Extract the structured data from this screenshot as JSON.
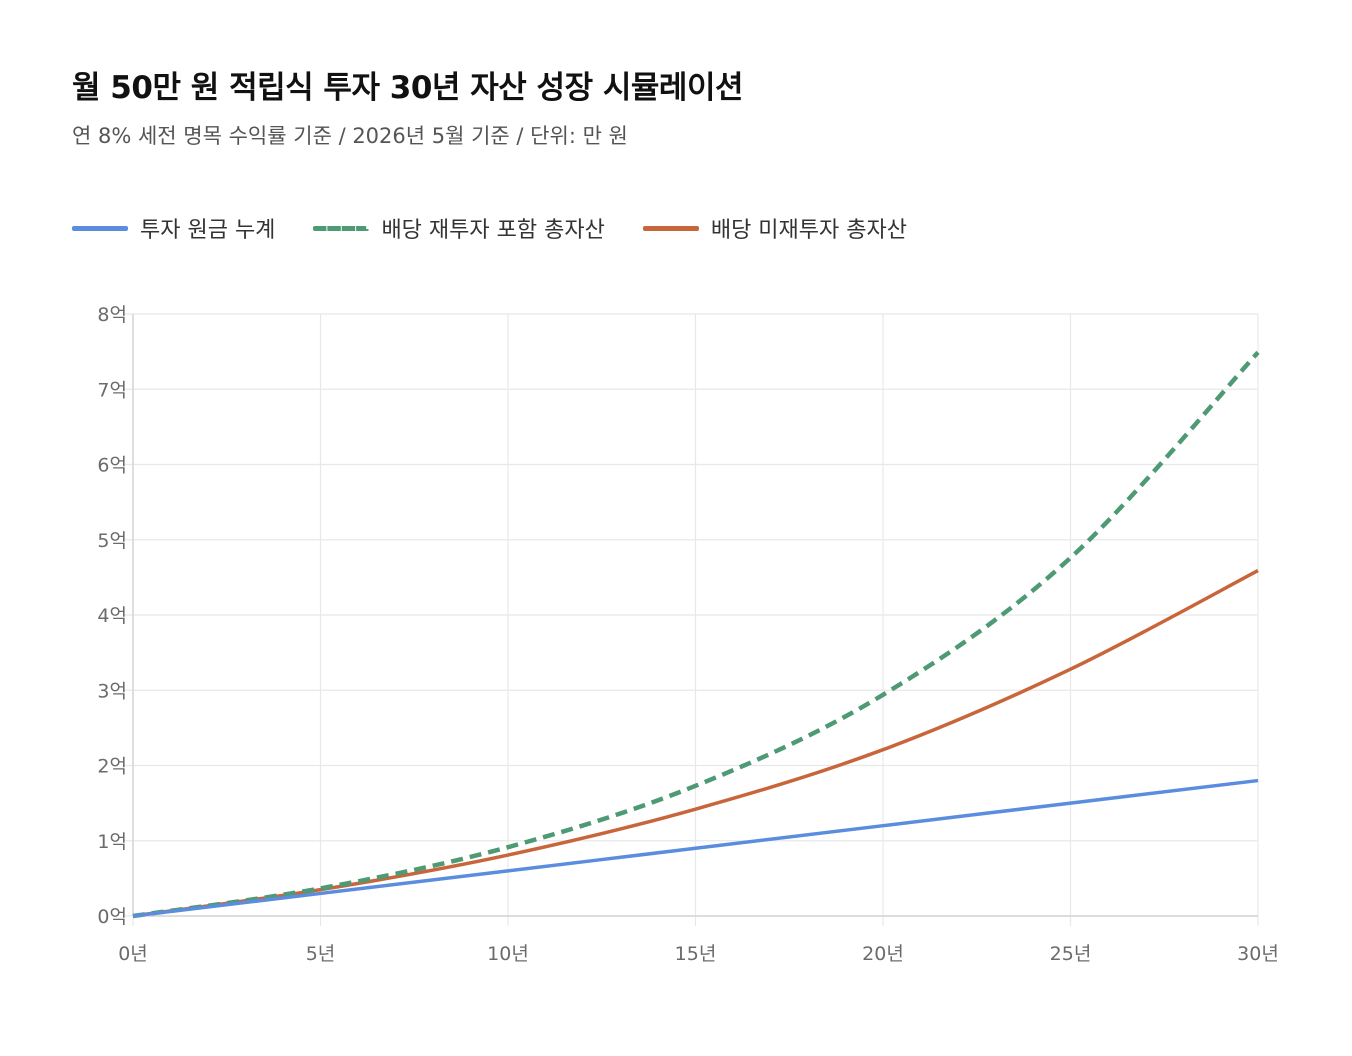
{
  "header": {
    "title": "월 50만 원 적립식 투자 30년 자산 성장 시뮬레이션",
    "subtitle": "연 8% 세전 명목 수익률 기준 / 2026년 5월 기준 / 단위: 만 원"
  },
  "chart_data": {
    "type": "line",
    "title": "월 50만 원 적립식 투자 30년 자산 성장 시뮬레이션",
    "subtitle": "연 8% 세전 명목 수익률 기준 / 2026년 5월 기준 / 단위: 만 원",
    "xlabel": "",
    "ylabel": "",
    "x": [
      0,
      5,
      10,
      15,
      20,
      25,
      30
    ],
    "xlim": [
      0,
      30
    ],
    "ylim": [
      0,
      80000
    ],
    "x_ticks": [
      {
        "value": 0,
        "label": "0년"
      },
      {
        "value": 5,
        "label": "5년"
      },
      {
        "value": 10,
        "label": "10년"
      },
      {
        "value": 15,
        "label": "15년"
      },
      {
        "value": 20,
        "label": "20년"
      },
      {
        "value": 25,
        "label": "25년"
      },
      {
        "value": 30,
        "label": "30년"
      }
    ],
    "y_ticks": [
      {
        "value": 0,
        "label": "0억"
      },
      {
        "value": 10000,
        "label": "1억"
      },
      {
        "value": 20000,
        "label": "2억"
      },
      {
        "value": 30000,
        "label": "3억"
      },
      {
        "value": 40000,
        "label": "4억"
      },
      {
        "value": 50000,
        "label": "5억"
      },
      {
        "value": 60000,
        "label": "6억"
      },
      {
        "value": 70000,
        "label": "7억"
      },
      {
        "value": 80000,
        "label": "8억"
      }
    ],
    "grid": true,
    "legend_position": "top-left",
    "series": [
      {
        "name": "투자 원금 누계",
        "color": "#5b8ddf",
        "dashed": false,
        "values": [
          0,
          3000,
          6000,
          9000,
          12000,
          15000,
          18000
        ]
      },
      {
        "name": "배당 재투자 포함 총자산",
        "color": "#4e9a74",
        "dashed": true,
        "values": [
          0,
          3670,
          9150,
          17300,
          29400,
          47600,
          74900
        ]
      },
      {
        "name": "배당 미재투자 총자산",
        "color": "#c8653b",
        "dashed": false,
        "values": [
          0,
          3500,
          8100,
          14200,
          22100,
          32800,
          45900
        ]
      }
    ]
  }
}
